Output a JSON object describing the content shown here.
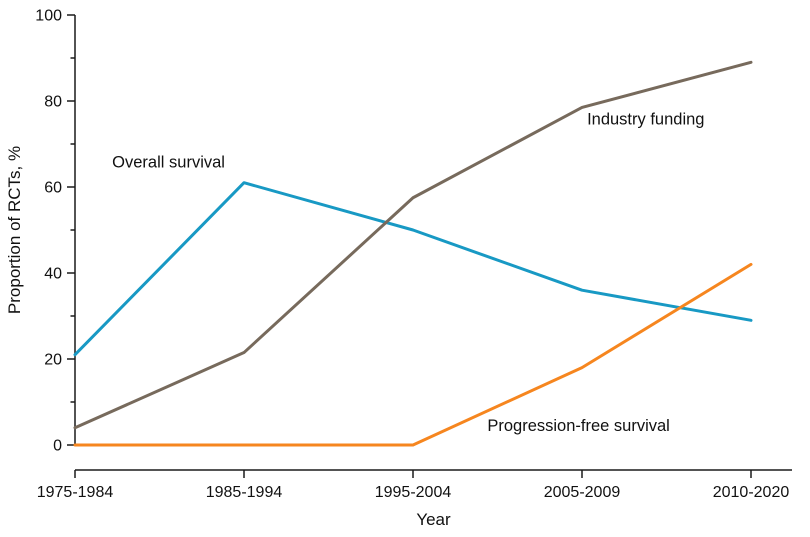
{
  "chart_data": {
    "type": "line",
    "title": "",
    "xlabel": "Year",
    "ylabel": "Proportion of RCTs, %",
    "ylim": [
      0,
      100
    ],
    "ytick_major": 20,
    "ytick_minor": 10,
    "grid": false,
    "legend_position": "inline-annotations",
    "categories": [
      "1975-1984",
      "1985-1994",
      "1995-2004",
      "2005-2009",
      "2010-2020"
    ],
    "series": [
      {
        "name": "Overall survival",
        "color": "#1899C4",
        "values": [
          21,
          61,
          50,
          36,
          29
        ]
      },
      {
        "name": "Industry funding",
        "color": "#776A5C",
        "values": [
          4,
          21.5,
          57.5,
          78.5,
          89
        ]
      },
      {
        "name": "Progression-free survival",
        "color": "#F6861F",
        "values": [
          0,
          0,
          0,
          18,
          42
        ]
      }
    ],
    "annotations": [
      {
        "text": "Overall survival",
        "x": 0.22,
        "y": 64.5,
        "color": "#111111"
      },
      {
        "text": "Industry funding",
        "x": 3.03,
        "y": 74.5,
        "color": "#111111"
      },
      {
        "text": "Progression-free survival",
        "x": 2.44,
        "y": 3.2,
        "color": "#111111"
      }
    ],
    "axis_color": "#1a1a1a",
    "text_color": "#111111"
  }
}
